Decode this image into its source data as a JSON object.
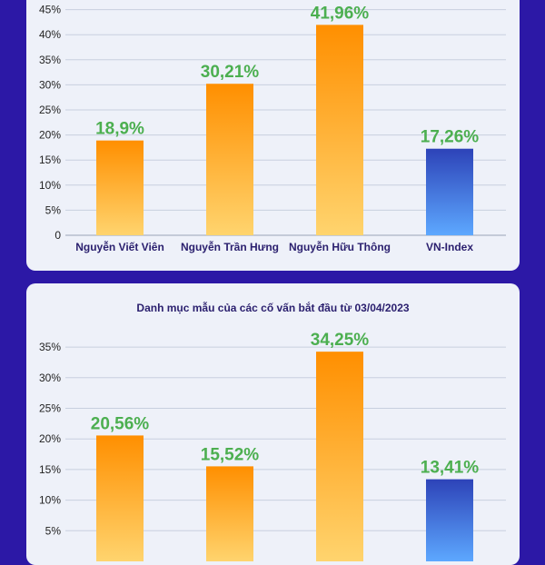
{
  "colors": {
    "orange_top": "#ff8f00",
    "orange_bottom": "#ffd46e",
    "blue_top": "#2d43b8",
    "blue_bottom": "#5da8ff",
    "value_label": "#4caf50",
    "axis_text": "#222222",
    "category_text": "#2a1f6e",
    "grid": "#c8cfdf"
  },
  "chart_data": [
    {
      "type": "bar",
      "title": "",
      "categories": [
        "Nguyễn Viết Viên",
        "Nguyễn Trần Hưng",
        "Nguyễn Hữu Thông",
        "VN-Index"
      ],
      "values": [
        18.9,
        30.21,
        41.96,
        17.26
      ],
      "value_labels": [
        "18,9%",
        "30,21%",
        "41,96%",
        "17,26%"
      ],
      "bar_colors": [
        "orange",
        "orange",
        "orange",
        "blue"
      ],
      "yticks": [
        0,
        5,
        10,
        15,
        20,
        25,
        30,
        35,
        40,
        45
      ],
      "ytick_labels": [
        "0",
        "5%",
        "10%",
        "15%",
        "20%",
        "25%",
        "30%",
        "35%",
        "40%",
        "45%"
      ],
      "ylim": [
        0,
        45
      ],
      "grid": true,
      "legend": "none"
    },
    {
      "type": "bar",
      "title": "Danh mục mẫu của các cố vấn bắt đầu từ 03/04/2023",
      "categories": [
        "",
        "",
        "",
        ""
      ],
      "values": [
        20.56,
        15.52,
        34.25,
        13.41
      ],
      "value_labels": [
        "20,56%",
        "15,52%",
        "34,25%",
        "13,41%"
      ],
      "bar_colors": [
        "orange",
        "orange",
        "orange",
        "blue"
      ],
      "yticks": [
        5,
        10,
        15,
        20,
        25,
        30,
        35
      ],
      "ytick_labels": [
        "5%",
        "10%",
        "15%",
        "20%",
        "25%",
        "30%",
        "35%"
      ],
      "ylim": [
        0,
        35
      ],
      "grid": true,
      "legend": "none"
    }
  ]
}
